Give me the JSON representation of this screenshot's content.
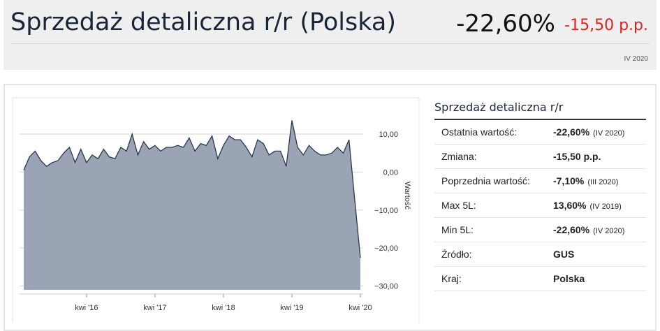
{
  "header": {
    "title": "Sprzedaż detaliczna r/r (Polska)",
    "value": "-22,60%",
    "change": "-15,50 p.p.",
    "period": "IV 2020"
  },
  "chart_data": {
    "type": "area",
    "y_label": "Wartość",
    "color": "#9aa4b4",
    "line_color": "#2b364b",
    "grid": true,
    "categories": [
      null,
      null,
      null,
      null,
      null,
      null,
      null,
      null,
      null,
      null,
      null,
      "kwi '16",
      null,
      null,
      null,
      null,
      null,
      null,
      null,
      null,
      null,
      null,
      null,
      "kwi '17",
      null,
      null,
      null,
      null,
      null,
      null,
      null,
      null,
      null,
      null,
      null,
      "kwi '18",
      null,
      null,
      null,
      null,
      null,
      null,
      null,
      null,
      null,
      null,
      null,
      "kwi '19",
      null,
      null,
      null,
      null,
      null,
      null,
      null,
      null,
      null,
      null,
      null,
      "kwi '20"
    ],
    "values": [
      0.5,
      4,
      5.5,
      3,
      1.5,
      2.5,
      3,
      5,
      6.5,
      2.5,
      6,
      2.5,
      4.5,
      3.5,
      6,
      4,
      3.5,
      6.5,
      5.5,
      10,
      4.5,
      8,
      6,
      7,
      5.5,
      6.5,
      6.5,
      7,
      6.5,
      9,
      5.5,
      7.5,
      7,
      9.5,
      3.5,
      7,
      9.5,
      8.5,
      8.5,
      6.5,
      4,
      8.5,
      7.5,
      4.5,
      5.5,
      5.5,
      1.5,
      13.6,
      6.5,
      4.5,
      7,
      5.5,
      4.5,
      4.5,
      5,
      6.5,
      5,
      8.5,
      -7.1,
      -22.6
    ],
    "ylim": [
      -31,
      19
    ],
    "yticks": [
      {
        "value": 10,
        "label": "10,00"
      },
      {
        "value": 0,
        "label": "0,00"
      },
      {
        "value": -10,
        "label": "−10,00"
      },
      {
        "value": -20,
        "label": "−20,00"
      },
      {
        "value": -30,
        "label": "−30,00"
      }
    ]
  },
  "table": {
    "title": "Sprzedaż detaliczna r/r",
    "rows": [
      {
        "label": "Ostatnia wartość:",
        "value": "-22,60%",
        "note": "(IV 2020)"
      },
      {
        "label": "Zmiana:",
        "value": "-15,50 p.p."
      },
      {
        "label": "Poprzednia wartość:",
        "value": "-7,10%",
        "note": "(III 2020)"
      },
      {
        "label": "Max 5L:",
        "value": "13,60%",
        "note": "(IV 2019)"
      },
      {
        "label": "Min 5L:",
        "value": "-22,60%",
        "note": "(IV 2020)"
      },
      {
        "label": "Źródło:",
        "value": "GUS"
      },
      {
        "label": "Kraj:",
        "value": "Polska"
      }
    ]
  }
}
